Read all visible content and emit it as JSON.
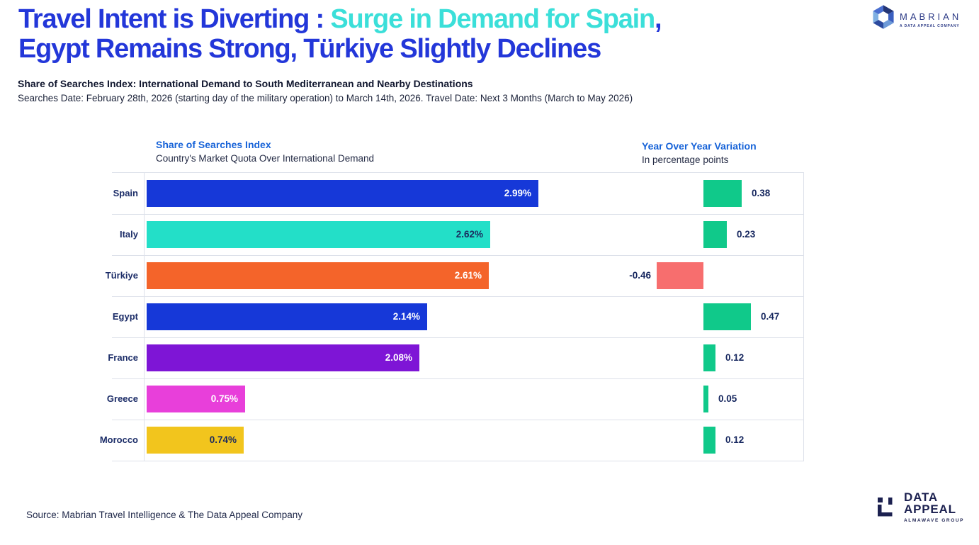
{
  "title": {
    "line1_blue": "Travel Intent is Diverting : ",
    "line1_cyan": "Surge in Demand for Spain",
    "line1_tail": ",",
    "line2": "Egypt Remains Strong, Türkiye Slightly Declines"
  },
  "subtitle": {
    "bold": "Share of Searches Index: International Demand to South Mediterranean and Nearby Destinations",
    "dates": "Searches Date: February 28th, 2026 (starting day of the military operation) to March 14th, 2026. Travel Date: Next 3 Months (March to May 2026)"
  },
  "left_column": {
    "title": "Share of Searches Index",
    "subtitle": "Country's Market Quota Over International Demand"
  },
  "right_column": {
    "title": "Year Over Year Variation",
    "subtitle": "In percentage points"
  },
  "rows": [
    {
      "country": "Spain",
      "share_pct": 2.99,
      "share_label": "2.99%",
      "share_color": "#1638d8",
      "share_label_color": "#ffffff",
      "yoy": 0.38,
      "yoy_label": "0.38"
    },
    {
      "country": "Italy",
      "share_pct": 2.62,
      "share_label": "2.62%",
      "share_color": "#23dfc8",
      "share_label_color": "#1b2a5e",
      "yoy": 0.23,
      "yoy_label": "0.23"
    },
    {
      "country": "Türkiye",
      "share_pct": 2.61,
      "share_label": "2.61%",
      "share_color": "#f4642a",
      "share_label_color": "#ffffff",
      "yoy": -0.46,
      "yoy_label": "-0.46"
    },
    {
      "country": "Egypt",
      "share_pct": 2.14,
      "share_label": "2.14%",
      "share_color": "#1638d8",
      "share_label_color": "#ffffff",
      "yoy": 0.47,
      "yoy_label": "0.47"
    },
    {
      "country": "France",
      "share_pct": 2.08,
      "share_label": "2.08%",
      "share_color": "#7e15d6",
      "share_label_color": "#ffffff",
      "yoy": 0.12,
      "yoy_label": "0.12"
    },
    {
      "country": "Greece",
      "share_pct": 0.75,
      "share_label": "0.75%",
      "share_color": "#e83fda",
      "share_label_color": "#ffffff",
      "yoy": 0.05,
      "yoy_label": "0.05"
    },
    {
      "country": "Morocco",
      "share_pct": 0.74,
      "share_label": "0.74%",
      "share_color": "#f2c51d",
      "share_label_color": "#1b2a5e",
      "yoy": 0.12,
      "yoy_label": "0.12"
    }
  ],
  "colors": {
    "positive": "#10c98a",
    "negative": "#f76e6e",
    "title_blue": "#2337d9",
    "title_cyan": "#3bdfd9",
    "header_blue": "#1763d8",
    "grid": "#dde1ea",
    "label_navy": "#1b2a5e"
  },
  "source": "Source: Mabrian Travel Intelligence & The Data Appeal Company",
  "logos": {
    "mabrian": {
      "name": "MABRIAN",
      "tagline": "A DATA APPEAL COMPANY"
    },
    "data_appeal": {
      "line1": "DATA",
      "line2": "APPEAL",
      "tagline": "ALMAWAVE GROUP"
    }
  },
  "chart_data": {
    "type": "bar",
    "orientation": "horizontal",
    "categories": [
      "Spain",
      "Italy",
      "Türkiye",
      "Egypt",
      "France",
      "Greece",
      "Morocco"
    ],
    "series": [
      {
        "name": "Share of Searches Index (%)",
        "values": [
          2.99,
          2.62,
          2.61,
          2.14,
          2.08,
          0.75,
          0.74
        ]
      },
      {
        "name": "Year Over Year Variation (percentage points)",
        "values": [
          0.38,
          0.23,
          -0.46,
          0.47,
          0.12,
          0.05,
          0.12
        ]
      }
    ],
    "title": "Travel Intent is Diverting: Surge in Demand for Spain, Egypt Remains Strong, Türkiye Slightly Declines",
    "xlabel": "",
    "ylabel": "",
    "xlim_share": [
      0,
      3.2
    ],
    "xlim_yoy": [
      -0.6,
      1.0
    ],
    "grid": "row-separators-only",
    "legend_position": "column-headers"
  }
}
